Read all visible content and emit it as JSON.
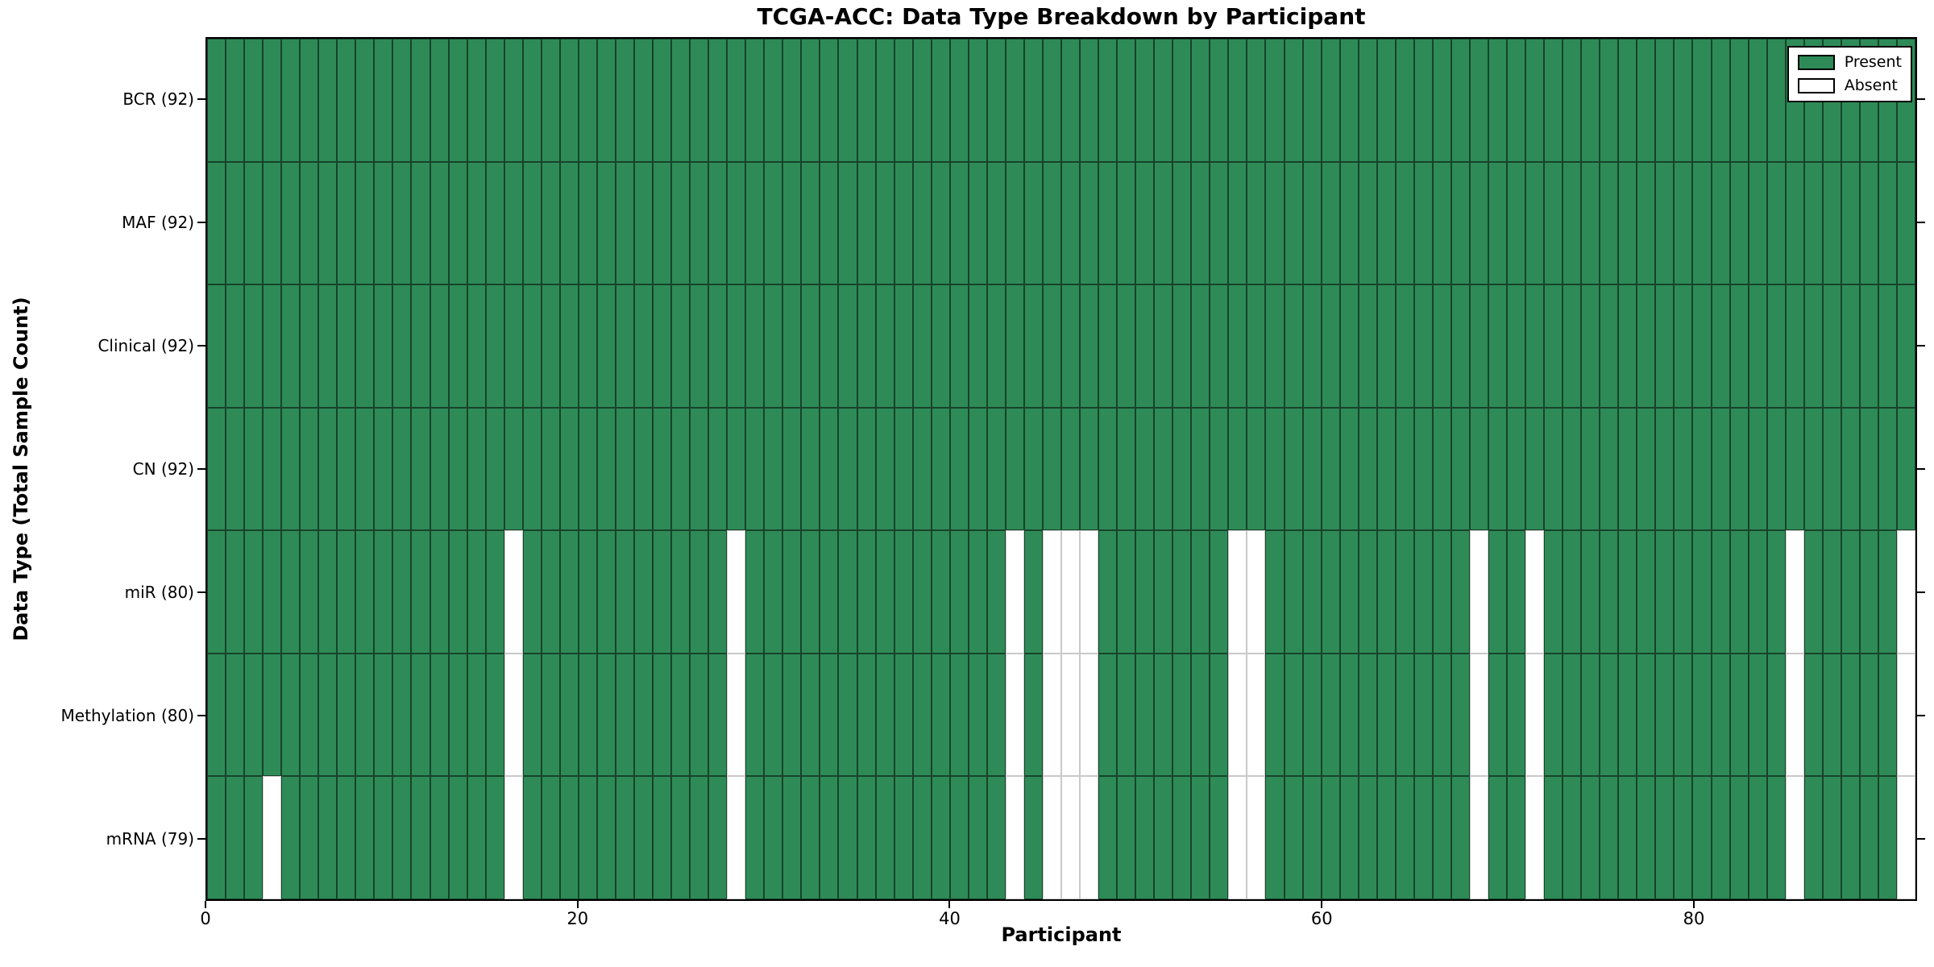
{
  "chart_data": {
    "type": "heatmap",
    "title": "TCGA-ACC: Data Type Breakdown by Participant",
    "xlabel": "Participant",
    "ylabel": "Data Type (Total Sample Count)",
    "x_range": [
      0,
      92
    ],
    "n_participants": 92,
    "x_ticks": [
      0,
      20,
      40,
      60,
      80
    ],
    "x_tick_labels": [
      "0",
      "20",
      "40",
      "60",
      "80"
    ],
    "grid": false,
    "legend_position": "upper right",
    "legend": [
      {
        "label": "Present",
        "color": "#2e8b57"
      },
      {
        "label": "Absent",
        "color": "#ffffff"
      }
    ],
    "colors": {
      "present": "#2e8b57",
      "absent": "#ffffff",
      "cell_edge": "#000000",
      "absent_edge": "#c9c9c9"
    },
    "rows": [
      {
        "name": "BCR",
        "label": "BCR (92)",
        "total": 92,
        "absent": []
      },
      {
        "name": "MAF",
        "label": "MAF (92)",
        "total": 92,
        "absent": []
      },
      {
        "name": "Clinical",
        "label": "Clinical (92)",
        "total": 92,
        "absent": []
      },
      {
        "name": "CN",
        "label": "CN (92)",
        "total": 92,
        "absent": []
      },
      {
        "name": "miR",
        "label": "miR (80)",
        "total": 80,
        "absent": [
          16,
          28,
          43,
          45,
          46,
          47,
          55,
          56,
          68,
          71,
          85,
          91
        ]
      },
      {
        "name": "Methylation",
        "label": "Methylation (80)",
        "total": 80,
        "absent": [
          16,
          28,
          43,
          45,
          46,
          47,
          55,
          56,
          68,
          71,
          85,
          91
        ]
      },
      {
        "name": "mRNA",
        "label": "mRNA (79)",
        "total": 79,
        "absent": [
          3,
          16,
          28,
          43,
          45,
          46,
          47,
          55,
          56,
          68,
          71,
          85,
          91
        ]
      }
    ]
  }
}
